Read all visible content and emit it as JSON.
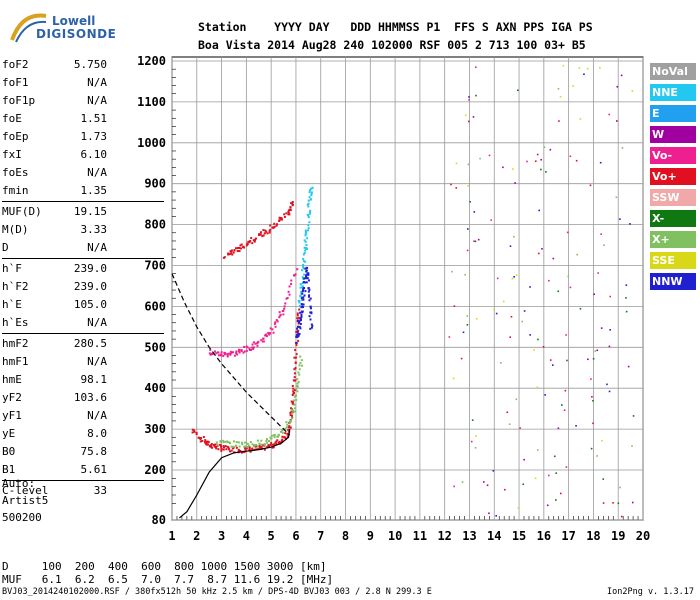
{
  "logo": {
    "line1": "Lowell",
    "line2": "DIGISONDE"
  },
  "header": {
    "line1": "Station    YYYY DAY   DDD HHMMSS P1  FFS S AXN PPS IGA PS",
    "line2": "Boa Vista 2014 Aug28 240 102000 RSF 005 2 713 100 03+ B5"
  },
  "params": [
    {
      "group": [
        {
          "name": "foF2",
          "value": "5.750"
        },
        {
          "name": "foF1",
          "value": "N/A"
        },
        {
          "name": "foF1p",
          "value": "N/A"
        },
        {
          "name": "foE",
          "value": "1.51"
        },
        {
          "name": "foEp",
          "value": "1.73"
        },
        {
          "name": "fxI",
          "value": "6.10"
        },
        {
          "name": "foEs",
          "value": "N/A"
        },
        {
          "name": "fmin",
          "value": "1.35"
        }
      ]
    },
    {
      "group": [
        {
          "name": "MUF(D)",
          "value": "19.15"
        },
        {
          "name": "M(D)",
          "value": "3.33"
        },
        {
          "name": "D",
          "value": "N/A"
        }
      ]
    },
    {
      "group": [
        {
          "name": "h`F",
          "value": "239.0"
        },
        {
          "name": "h`F2",
          "value": "239.0"
        },
        {
          "name": "h`E",
          "value": "105.0"
        },
        {
          "name": "h`Es",
          "value": "N/A"
        }
      ]
    },
    {
      "group": [
        {
          "name": "hmF2",
          "value": "280.5"
        },
        {
          "name": "hmF1",
          "value": "N/A"
        },
        {
          "name": "hmE",
          "value": "98.1"
        },
        {
          "name": "yF2",
          "value": "103.6"
        },
        {
          "name": "yF1",
          "value": "N/A"
        },
        {
          "name": "yE",
          "value": "8.0"
        },
        {
          "name": "B0",
          "value": "75.8"
        },
        {
          "name": "B1",
          "value": "5.61"
        }
      ]
    },
    {
      "group": [
        {
          "name": "C-level",
          "value": "33"
        }
      ]
    }
  ],
  "auto": {
    "line1": "Auto:",
    "line2": "Artist5",
    "line3": "500200"
  },
  "legend": [
    {
      "label": "NoVal",
      "color": "#a0a0a0"
    },
    {
      "label": "NNE",
      "color": "#22c8f0"
    },
    {
      "label": "E",
      "color": "#22a0f0"
    },
    {
      "label": "W",
      "color": "#a000a0"
    },
    {
      "label": "Vo-",
      "color": "#ee2090"
    },
    {
      "label": "Vo+",
      "color": "#e01020"
    },
    {
      "label": "SSW",
      "color": "#f0a8a8"
    },
    {
      "label": "X-",
      "color": "#107810"
    },
    {
      "label": "X+",
      "color": "#80c060"
    },
    {
      "label": "SSE",
      "color": "#d8d818"
    },
    {
      "label": "NNW",
      "color": "#2020d0"
    }
  ],
  "muf_table": {
    "line1": "D     100  200  400  600  800 1000 1500 3000 [km]",
    "line2": "MUF   6.1  6.2  6.5  7.0  7.7  8.7 11.6 19.2 [MHz]"
  },
  "footer": "BVJ03_2014240102000.RSF / 380fx512h 50 kHz 2.5 km / DPS-4D BVJ03 003 / 2.8 N 299.3 E",
  "footer_right": "Ion2Png v. 1.3.17",
  "chart_data": {
    "type": "scatter",
    "x_ticks": [
      1,
      2,
      3,
      4,
      5,
      6,
      7,
      8,
      9,
      10,
      11,
      12,
      13,
      14,
      15,
      16,
      17,
      18,
      19,
      20
    ],
    "y_ticks": [
      80,
      200,
      300,
      400,
      500,
      600,
      700,
      800,
      900,
      1000,
      1100,
      1200
    ],
    "xlim": [
      1,
      20
    ],
    "ylim": [
      80,
      1220
    ],
    "grid": true,
    "legend_position": "right",
    "series": [
      {
        "name": "Vo+",
        "color": "#e01020",
        "x": [
          1.8,
          2.3,
          2.6,
          3.0,
          3.5,
          4.0,
          4.5,
          5.0,
          5.4,
          5.7,
          5.8,
          5.9,
          6.0,
          6.1
        ],
        "y": [
          300,
          270,
          262,
          255,
          252,
          252,
          255,
          262,
          275,
          300,
          350,
          420,
          520,
          600
        ]
      },
      {
        "name": "Vo-",
        "color": "#ee2090",
        "x": [
          2.5,
          3.0,
          3.5,
          4.0,
          4.5,
          5.0,
          5.5,
          6.0
        ],
        "y": [
          490,
          485,
          488,
          498,
          515,
          545,
          600,
          700
        ]
      },
      {
        "name": "X+",
        "color": "#80c060",
        "x": [
          2.8,
          3.5,
          4.2,
          4.8,
          5.3,
          5.8,
          6.0,
          6.2
        ],
        "y": [
          270,
          265,
          265,
          272,
          290,
          330,
          400,
          480
        ]
      },
      {
        "name": "NNE",
        "color": "#22c8f0",
        "x": [
          6.1,
          6.2,
          6.3,
          6.4,
          6.5,
          6.6
        ],
        "y": [
          600,
          650,
          720,
          780,
          850,
          900
        ]
      },
      {
        "name": "NNW",
        "color": "#2020d0",
        "x": [
          6.0,
          6.1,
          6.2,
          6.3,
          6.4,
          6.5,
          6.6
        ],
        "y": [
          520,
          560,
          600,
          650,
          700,
          620,
          540
        ]
      },
      {
        "name": "Vo+",
        "color": "#e01020",
        "x": [
          3.1,
          3.6,
          4.1,
          4.6,
          5.1,
          5.6,
          5.9
        ],
        "y": [
          725,
          740,
          760,
          780,
          800,
          830,
          860
        ]
      }
    ],
    "profile_line": {
      "x": [
        1.3,
        1.6,
        2.0,
        2.5,
        3.0,
        3.5,
        4.0,
        4.5,
        5.0,
        5.4,
        5.7,
        5.75
      ],
      "y": [
        85,
        100,
        140,
        195,
        230,
        242,
        246,
        250,
        256,
        265,
        280,
        300
      ]
    },
    "dashed_line": {
      "x": [
        1.0,
        1.5,
        2.0,
        2.5,
        3.0,
        3.5,
        4.0,
        4.5,
        5.0,
        5.5,
        5.75
      ],
      "y": [
        680,
        610,
        550,
        500,
        460,
        425,
        390,
        360,
        330,
        300,
        285
      ]
    }
  }
}
